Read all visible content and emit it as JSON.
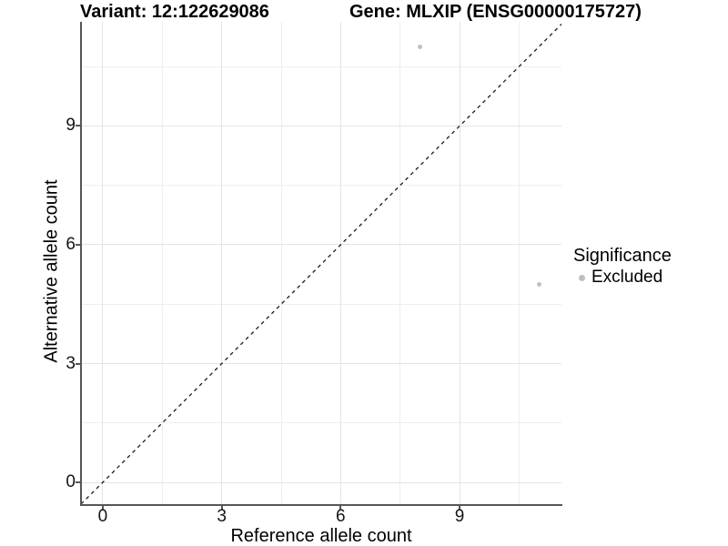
{
  "header": {
    "variant_title": "Variant: 12:122629086",
    "gene_title": "Gene: MLXIP (ENSG00000175727)"
  },
  "legend": {
    "title": "Significance",
    "items": [
      {
        "label": "Excluded",
        "color": "#bebebe"
      }
    ]
  },
  "chart_data": {
    "type": "scatter",
    "title": "Variant: 12:122629086  Gene: MLXIP (ENSG00000175727)",
    "xlabel": "Reference allele count",
    "ylabel": "Alternative allele count",
    "points": [
      {
        "x": 8,
        "y": 11,
        "series": "Excluded"
      },
      {
        "x": 11,
        "y": 5,
        "series": "Excluded"
      }
    ],
    "series": [
      {
        "name": "Excluded",
        "color": "#c1c1c1"
      }
    ],
    "xticks": [
      0,
      3,
      6,
      9
    ],
    "yticks": [
      0,
      3,
      6,
      9
    ],
    "xminor": [
      1.5,
      4.5,
      7.5,
      10.5
    ],
    "yminor": [
      1.5,
      4.5,
      7.5,
      10.5
    ],
    "xlim": [
      -0.55,
      11.57
    ],
    "ylim": [
      -0.55,
      11.63
    ],
    "identity_line": {
      "slope": 1,
      "intercept": 0,
      "style": "dashed",
      "color": "#1a1a1a"
    },
    "grid": true,
    "legend_position": "right",
    "legend_title": "Significance"
  },
  "colors": {
    "background": "#ffffff",
    "grid_major": "#e4e4e4",
    "grid_minor": "#eeeeee",
    "axis_line": "#565656",
    "point": "#c1c1c1"
  }
}
